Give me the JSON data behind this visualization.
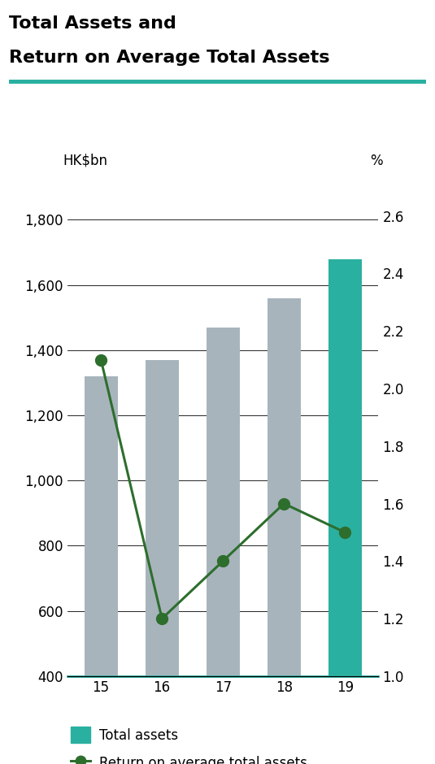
{
  "title_line1": "Total Assets and",
  "title_line2": "Return on Average Total Assets",
  "categories": [
    "15",
    "16",
    "17",
    "18",
    "19"
  ],
  "bar_values": [
    1320,
    1370,
    1470,
    1560,
    1680
  ],
  "bar_colors": [
    "#a8b4bc",
    "#a8b4bc",
    "#a8b4bc",
    "#a8b4bc",
    "#2ab0a0"
  ],
  "line_values": [
    2.1,
    1.2,
    1.4,
    1.6,
    1.5
  ],
  "left_ylabel": "HK$bn",
  "right_ylabel": "%",
  "left_ylim": [
    400,
    1900
  ],
  "right_ylim": [
    1.0,
    2.7
  ],
  "left_yticks": [
    400,
    600,
    800,
    1000,
    1200,
    1400,
    1600,
    1800
  ],
  "right_yticks": [
    1.0,
    1.2,
    1.4,
    1.6,
    1.8,
    2.0,
    2.2,
    2.4,
    2.6
  ],
  "left_ytick_labels": [
    "400",
    "600",
    "800",
    "1,000",
    "1,200",
    "1,400",
    "1,600",
    "1,800"
  ],
  "right_ytick_labels": [
    "1.0",
    "1.2",
    "1.4",
    "1.6",
    "1.8",
    "2.0",
    "2.2",
    "2.4",
    "2.6"
  ],
  "teal_color": "#2ab0a0",
  "green_color": "#2d6e2d",
  "legend_label_bar": "Total assets",
  "legend_label_line": "Return on average total assets",
  "background_color": "#ffffff",
  "title_fontsize": 16,
  "axis_label_fontsize": 12,
  "tick_fontsize": 12,
  "legend_fontsize": 12
}
